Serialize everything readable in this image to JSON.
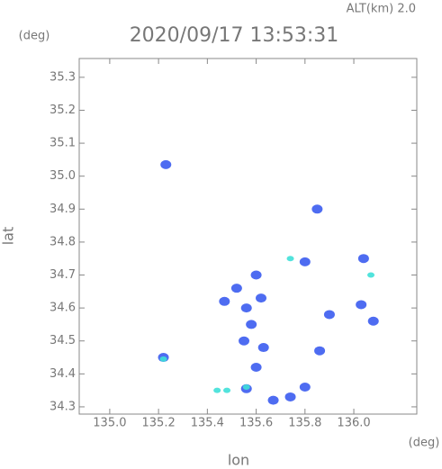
{
  "chart_data": {
    "type": "scatter",
    "title": "2020/09/17 13:53:31",
    "subtitle": "ALT(km) 2.0",
    "y_unit": "(deg)",
    "x_unit": "(deg)",
    "xlabel": "lon",
    "ylabel": "lat",
    "xlim": [
      134.875,
      136.258
    ],
    "ylim": [
      34.278,
      35.357
    ],
    "xticks": [
      {
        "value": 135,
        "label": "135.0"
      },
      135.2,
      135.4,
      135.6,
      135.8,
      {
        "value": 136,
        "label": "136.0"
      }
    ],
    "yticks": [
      34.3,
      34.4,
      34.5,
      34.6,
      34.7,
      34.8,
      34.9,
      {
        "value": 35,
        "label": "35.0"
      },
      35.1,
      35.2,
      35.3
    ],
    "series": [
      {
        "color": "#3b5cf0",
        "x": [
          135.23,
          135.22,
          135.56,
          135.8,
          136.03,
          135.55,
          135.56,
          135.47,
          135.67,
          135.74,
          135.9,
          135.85,
          136.04,
          135.6,
          135.6,
          135.63,
          135.8,
          136.08,
          135.86,
          135.52,
          135.58,
          135.62
        ],
        "values": [
          35.035,
          34.45,
          34.355,
          34.74,
          34.61,
          34.5,
          34.6,
          34.62,
          34.32,
          34.33,
          34.58,
          34.9,
          34.75,
          34.42,
          34.7,
          34.48,
          34.36,
          34.56,
          34.47,
          34.66,
          34.55,
          34.63
        ]
      },
      {
        "color": "#3fe0d8",
        "x": [
          135.74,
          135.22,
          135.44,
          135.48,
          136.07,
          135.56
        ],
        "values": [
          34.75,
          34.445,
          34.35,
          34.35,
          34.7,
          34.36
        ]
      }
    ]
  }
}
